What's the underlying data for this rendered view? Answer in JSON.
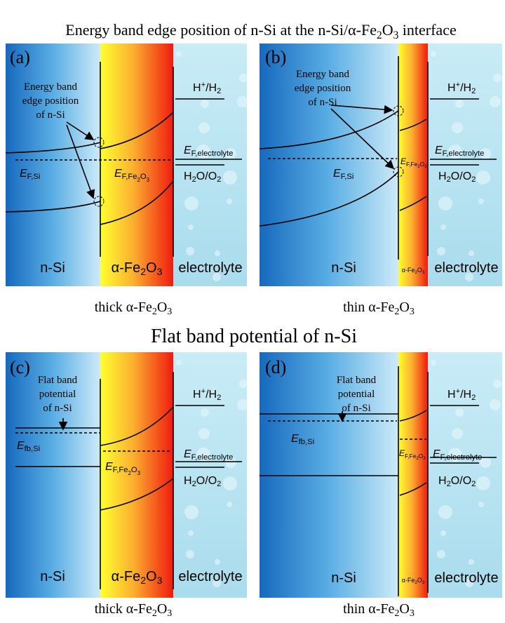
{
  "title_top": [
    "Energy band edge position of n-Si at the n-Si/α-Fe",
    "2",
    "O",
    "3",
    " interface"
  ],
  "title_bottom": "Flat band potential of n-Si",
  "panels": [
    {
      "label": "(a)",
      "callout": [
        "Energy band",
        "edge position",
        "of n-Si"
      ],
      "h2": [
        "H",
        "+",
        "/H",
        "2"
      ],
      "o2": [
        "H",
        "2",
        "O/O",
        "2"
      ],
      "ef_el": [
        "E",
        "F,electrolyte"
      ],
      "ef_si": [
        "E",
        "F,Si"
      ],
      "ef_fe": [
        "E",
        "F,Fe",
        "2",
        "O",
        "3"
      ],
      "regions": [
        "n-Si",
        [
          "α-Fe",
          "2",
          "O",
          "3"
        ],
        "electrolyte"
      ],
      "caption": [
        "thick α-Fe",
        "2",
        "O",
        "3"
      ]
    },
    {
      "label": "(b)",
      "callout": [
        "Energy band",
        "edge position",
        "of n-Si"
      ],
      "h2": [
        "H",
        "+",
        "/H",
        "2"
      ],
      "o2": [
        "H",
        "2",
        "O/O",
        "2"
      ],
      "ef_el": [
        "E",
        "F,electrolyte"
      ],
      "ef_si": [
        "E",
        "F,Si"
      ],
      "ef_fe": [
        "E",
        "F,Fe",
        "2",
        "O",
        "3"
      ],
      "regions": [
        "n-Si",
        [
          "α-Fe",
          "2",
          "O",
          "3"
        ],
        "electrolyte"
      ],
      "caption": [
        "thin α-Fe",
        "2",
        "O",
        "3"
      ]
    },
    {
      "label": "(c)",
      "callout": [
        "Flat band",
        "potential",
        "of n-Si"
      ],
      "h2": [
        "H",
        "+",
        "/H",
        "2"
      ],
      "o2": [
        "H",
        "2",
        "O/O",
        "2"
      ],
      "ef_el": [
        "E",
        "F,electrolyte"
      ],
      "ef_si": [
        "E",
        "fb,Si"
      ],
      "ef_fe": [
        "E",
        "F,Fe",
        "2",
        "O",
        "3"
      ],
      "regions": [
        "n-Si",
        [
          "α-Fe",
          "2",
          "O",
          "3"
        ],
        "electrolyte"
      ],
      "caption": [
        "thick α-Fe",
        "2",
        "O",
        "3"
      ]
    },
    {
      "label": "(d)",
      "callout": [
        "Flat band",
        "potential",
        "of n-Si"
      ],
      "h2": [
        "H",
        "+",
        "/H",
        "2"
      ],
      "o2": [
        "H",
        "2",
        "O/O",
        "2"
      ],
      "ef_el": [
        "E",
        "F,electrolyte"
      ],
      "ef_si": [
        "E",
        "fb,Si"
      ],
      "ef_fe": [
        "E",
        "F,Fe",
        "2",
        "O",
        "3"
      ],
      "regions": [
        "n-Si",
        [
          "α-Fe",
          "2",
          "O",
          "3"
        ],
        "electrolyte"
      ],
      "caption": [
        "thin α-Fe",
        "2",
        "O",
        "3"
      ]
    }
  ]
}
